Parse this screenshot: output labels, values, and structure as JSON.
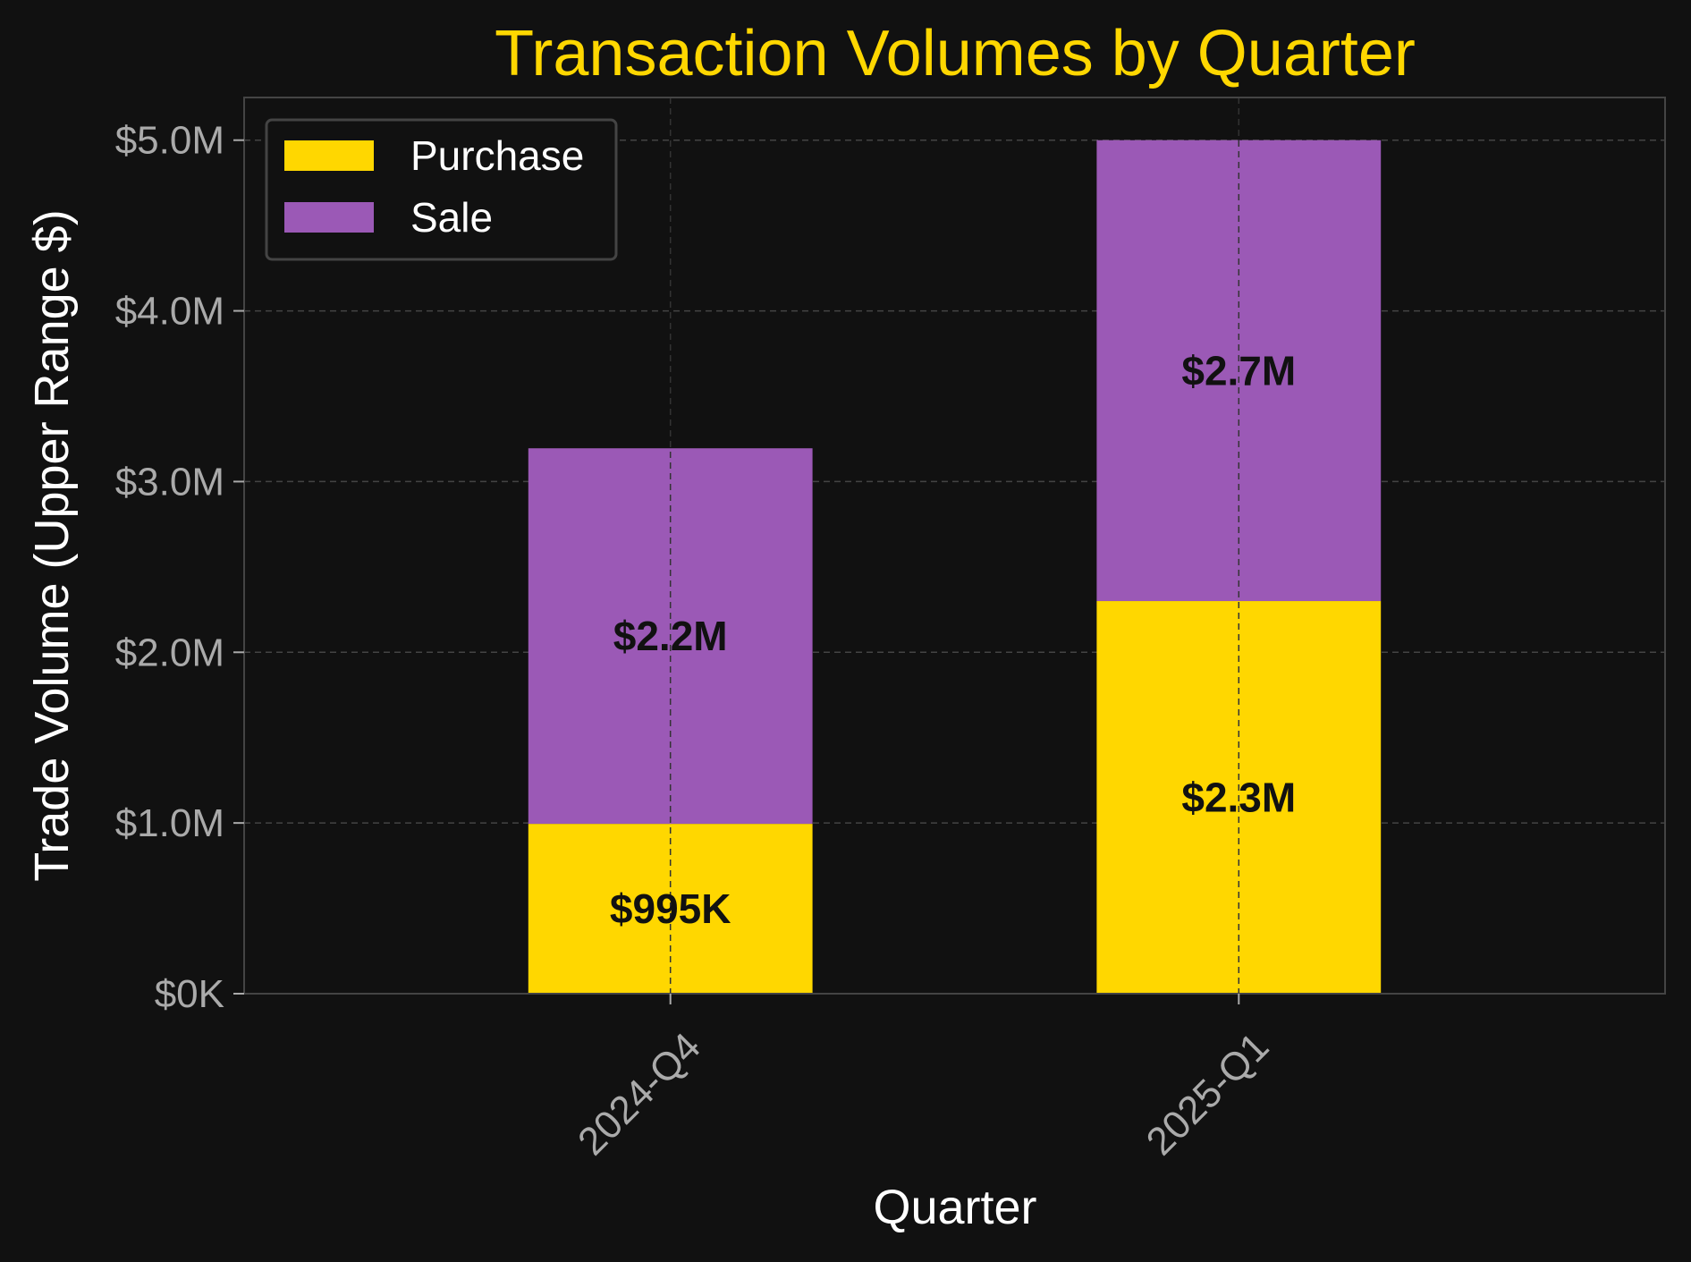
{
  "chart_data": {
    "type": "bar",
    "stacked": true,
    "title": "Transaction Volumes by Quarter",
    "xlabel": "Quarter",
    "ylabel": "Trade Volume (Upper Range $)",
    "categories": [
      "2024-Q4",
      "2025-Q1"
    ],
    "series": [
      {
        "name": "Purchase",
        "color": "#FFD700",
        "values": [
          995000,
          2300000
        ],
        "labels": [
          "$995K",
          "$2.3M"
        ]
      },
      {
        "name": "Sale",
        "color": "#9B59B6",
        "values": [
          2200000,
          2700000
        ],
        "labels": [
          "$2.2M",
          "$2.7M"
        ]
      }
    ],
    "ylim": [
      0,
      5250000
    ],
    "yticks": [
      0,
      1000000,
      2000000,
      3000000,
      4000000,
      5000000
    ],
    "ytick_labels": [
      "$0K",
      "$1.0M",
      "$2.0M",
      "$3.0M",
      "$4.0M",
      "$5.0M"
    ],
    "grid": true,
    "legend_position": "top-left",
    "colors": {
      "background": "#111111",
      "title": "#FFD700",
      "grid": "#444444",
      "tick": "#AAAAAA"
    }
  }
}
